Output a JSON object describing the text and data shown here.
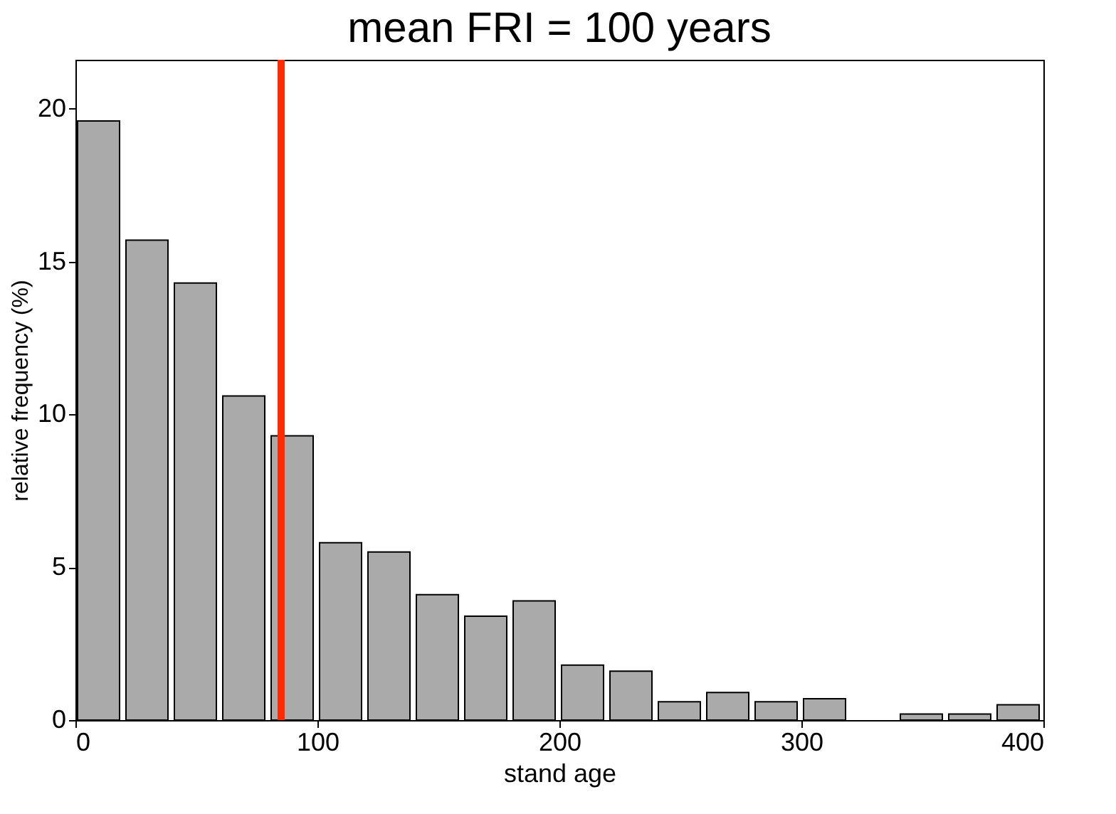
{
  "chart_data": {
    "type": "histogram",
    "title": "mean FRI = 100 years",
    "xlabel": "stand age",
    "ylabel": "relative frequency (%)",
    "bins": [
      0,
      20,
      40,
      60,
      80,
      100,
      120,
      140,
      160,
      180,
      200,
      220,
      240,
      260,
      280,
      300,
      320,
      340,
      360,
      380,
      400
    ],
    "values": [
      19.6,
      15.7,
      14.3,
      10.6,
      9.3,
      5.8,
      5.5,
      4.1,
      3.4,
      3.9,
      1.8,
      1.6,
      0.6,
      0.9,
      0.6,
      0.7,
      0,
      0.2,
      0.2,
      0.5
    ],
    "color": "#aaaaaa",
    "xlim": [
      0,
      400
    ],
    "xticks": [
      0,
      100,
      200,
      300,
      400
    ],
    "ylim": [
      0,
      21.6
    ],
    "yticks": [
      0,
      5,
      10,
      15,
      20
    ],
    "ref_lines": [
      {
        "axis": "x",
        "value": 85,
        "color": "#ff2a00"
      }
    ],
    "grid": false
  }
}
